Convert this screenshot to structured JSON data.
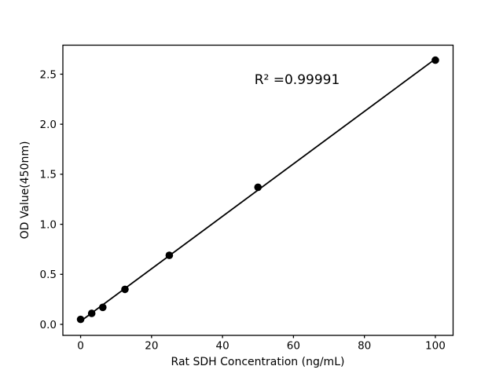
{
  "chart_data": {
    "type": "scatter",
    "title": "",
    "xlabel": "Rat SDH Concentration (ng/mL)",
    "ylabel": "OD Value(450nm)",
    "annotation": "R² =0.99991",
    "r_squared": 0.99991,
    "x": [
      0,
      3.125,
      6.25,
      12.5,
      25,
      50,
      100
    ],
    "y": [
      0.05,
      0.11,
      0.17,
      0.35,
      0.69,
      1.37,
      2.64
    ],
    "trendline": "linear-fit",
    "xlim": [
      -5,
      105
    ],
    "ylim": [
      -0.11,
      2.79
    ],
    "xticks": [
      0,
      20,
      40,
      60,
      80,
      100
    ],
    "xtick_labels": [
      "0",
      "20",
      "40",
      "60",
      "80",
      "100"
    ],
    "yticks": [
      0,
      0.5,
      1.0,
      1.5,
      2.0,
      2.5
    ],
    "ytick_labels": [
      "0.0",
      "0.5",
      "1.0",
      "1.5",
      "2.0",
      "2.5"
    ],
    "grid": false,
    "marker_color": "#000000",
    "line_color": "#000000",
    "axis_color": "#000000",
    "background_color": "#ffffff"
  }
}
